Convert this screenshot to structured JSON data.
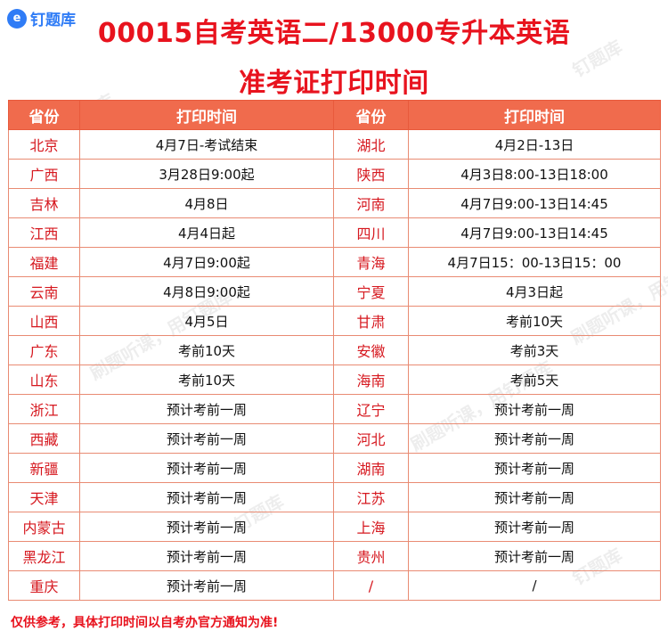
{
  "logo": {
    "text": "钉题库",
    "mark": "e"
  },
  "title": {
    "line1": "00015自考英语二/13000专升本英语",
    "line2": "准考证打印时间"
  },
  "table": {
    "headers": [
      "省份",
      "打印时间",
      "省份",
      "打印时间"
    ],
    "rows": [
      [
        "北京",
        "4月7日-考试结束",
        "湖北",
        "4月2日-13日"
      ],
      [
        "广西",
        "3月28日9:00起",
        "陕西",
        "4月3日8:00-13日18:00"
      ],
      [
        "吉林",
        "4月8日",
        "河南",
        "4月7日9:00-13日14:45"
      ],
      [
        "江西",
        "4月4日起",
        "四川",
        "4月7日9:00-13日14:45"
      ],
      [
        "福建",
        "4月7日9:00起",
        "青海",
        "4月7日15：00-13日15：00"
      ],
      [
        "云南",
        "4月8日9:00起",
        "宁夏",
        "4月3日起"
      ],
      [
        "山西",
        "4月5日",
        "甘肃",
        "考前10天"
      ],
      [
        "广东",
        "考前10天",
        "安徽",
        "考前3天"
      ],
      [
        "山东",
        "考前10天",
        "海南",
        "考前5天"
      ],
      [
        "浙江",
        "预计考前一周",
        "辽宁",
        "预计考前一周"
      ],
      [
        "西藏",
        "预计考前一周",
        "河北",
        "预计考前一周"
      ],
      [
        "新疆",
        "预计考前一周",
        "湖南",
        "预计考前一周"
      ],
      [
        "天津",
        "预计考前一周",
        "江苏",
        "预计考前一周"
      ],
      [
        "内蒙古",
        "预计考前一周",
        "上海",
        "预计考前一周"
      ],
      [
        "黑龙江",
        "预计考前一周",
        "贵州",
        "预计考前一周"
      ],
      [
        "重庆",
        "预计考前一周",
        "/",
        "/"
      ]
    ]
  },
  "footer": "仅供参考，具体打印时间以自考办官方通知为准!",
  "watermarks": [
    "钉题库",
    "刷题听课，用钉题库"
  ],
  "colors": {
    "title": "#e8131e",
    "header_bg": "#f06b4d",
    "province": "#d6181f",
    "brand": "#2f7cf6"
  }
}
